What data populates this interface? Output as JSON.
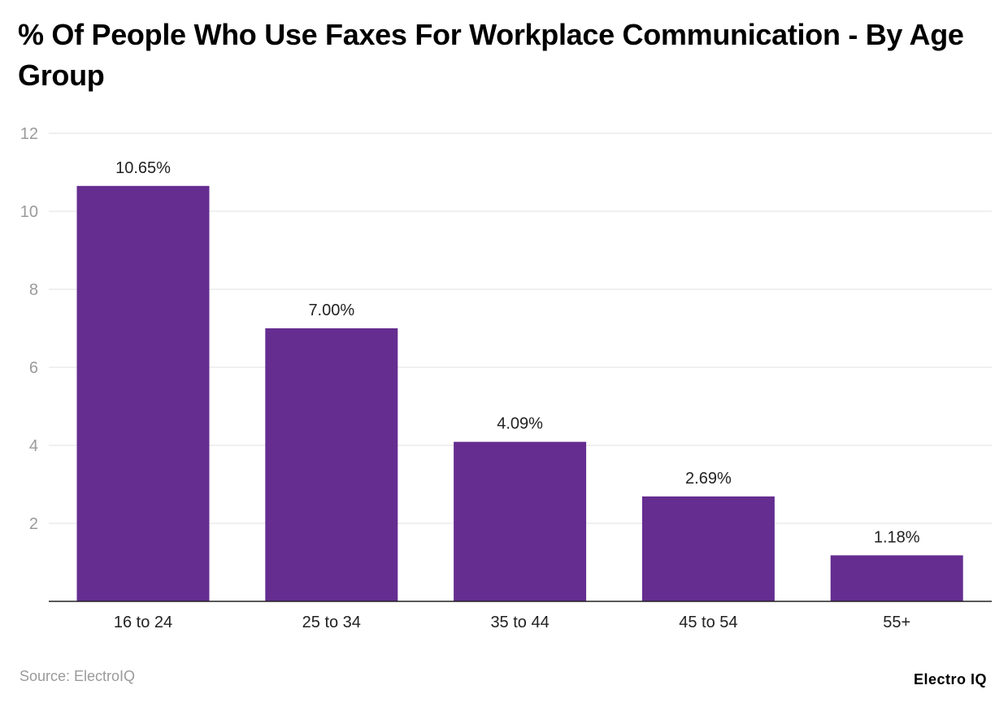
{
  "chart_data": {
    "type": "bar",
    "title": "% Of People Who Use Faxes For Workplace Communication - By Age Group",
    "categories": [
      "16 to 24",
      "25 to 34",
      "35 to 44",
      "45 to 54",
      "55+"
    ],
    "values": [
      10.65,
      7.0,
      4.09,
      2.69,
      1.18
    ],
    "data_labels": [
      "10.65%",
      "7.00%",
      "4.09%",
      "2.69%",
      "1.18%"
    ],
    "xlabel": "",
    "ylabel": "",
    "ylim": [
      0,
      12
    ],
    "yticks": [
      2,
      4,
      6,
      8,
      10,
      12
    ],
    "grid": true,
    "bar_color": "#652d90"
  },
  "source": "Source: ElectroIQ",
  "logo": "Electro IQ"
}
